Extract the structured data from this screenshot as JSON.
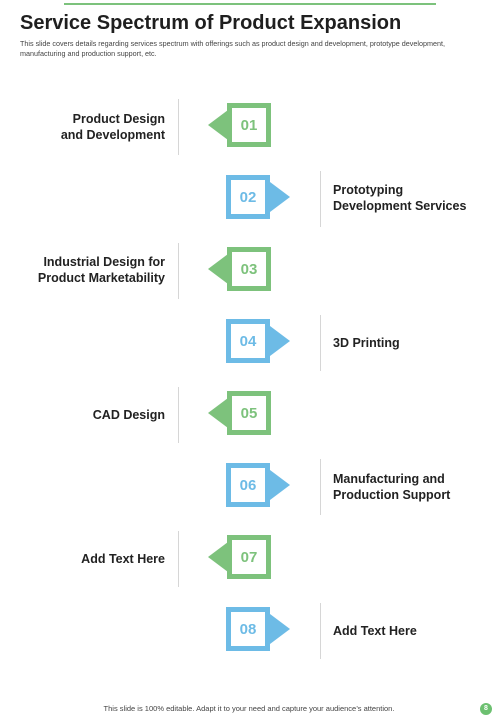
{
  "title": "Service Spectrum of Product Expansion",
  "subtitle": "This slide covers details regarding services spectrum with offerings such as product design and development, prototype development, manufacturing and production support, etc.",
  "steps": [
    {
      "number": "01",
      "label_line1": "Product Design",
      "label_line2": "and Development",
      "side": "left",
      "color": "#7dc27c"
    },
    {
      "number": "02",
      "label_line1": "Prototyping",
      "label_line2": "Development Services",
      "side": "right",
      "color": "#6dbbe6"
    },
    {
      "number": "03",
      "label_line1": "Industrial Design for",
      "label_line2": "Product Marketability",
      "side": "left",
      "color": "#7dc27c"
    },
    {
      "number": "04",
      "label_line1": "3D Printing",
      "label_line2": "",
      "side": "right",
      "color": "#6dbbe6"
    },
    {
      "number": "05",
      "label_line1": "CAD Design",
      "label_line2": "",
      "side": "left",
      "color": "#7dc27c"
    },
    {
      "number": "06",
      "label_line1": "Manufacturing and",
      "label_line2": "Production Support",
      "side": "right",
      "color": "#6dbbe6"
    },
    {
      "number": "07",
      "label_line1": "Add Text Here",
      "label_line2": "",
      "side": "left",
      "color": "#7dc27c"
    },
    {
      "number": "08",
      "label_line1": "Add Text Here",
      "label_line2": "",
      "side": "right",
      "color": "#6dbbe6"
    }
  ],
  "footer": "This slide is 100% editable. Adapt it to your need and capture your audience’s attention.",
  "page_number": "8"
}
